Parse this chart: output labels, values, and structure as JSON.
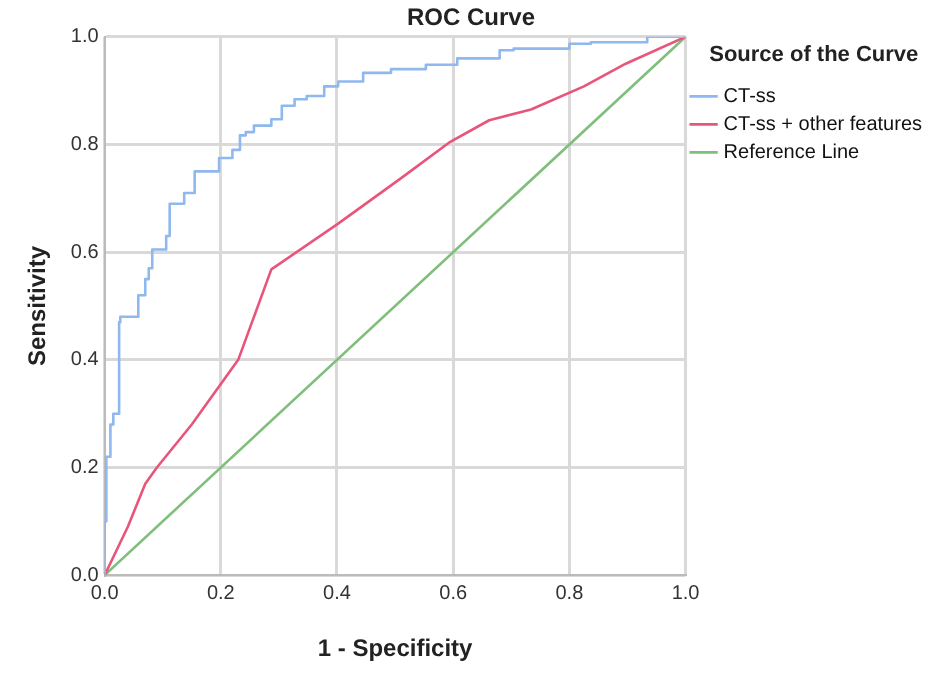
{
  "chart_data": {
    "type": "line",
    "title": "ROC Curve",
    "xlabel": "1 - Specificity",
    "ylabel": "Sensitivity",
    "legend_title": "Source of the Curve",
    "xlim": [
      0,
      1
    ],
    "ylim": [
      0,
      1
    ],
    "xticks": [
      {
        "value": 0,
        "label": "0.0"
      },
      {
        "value": 0.2,
        "label": "0.2"
      },
      {
        "value": 0.4,
        "label": "0.4"
      },
      {
        "value": 0.6,
        "label": "0.6"
      },
      {
        "value": 0.8,
        "label": "0.8"
      },
      {
        "value": 1,
        "label": "1.0"
      }
    ],
    "yticks": [
      {
        "value": 0,
        "label": "0.0"
      },
      {
        "value": 0.2,
        "label": "0.2"
      },
      {
        "value": 0.4,
        "label": "0.4"
      },
      {
        "value": 0.6,
        "label": "0.6"
      },
      {
        "value": 0.8,
        "label": "0.8"
      },
      {
        "value": 1,
        "label": "1.0"
      }
    ],
    "grid": true,
    "legend": "right",
    "marker": "none",
    "series": [
      {
        "name": "CT-ss",
        "type": "step",
        "color": "#8fb8ee",
        "x": [
          0,
          0.003,
          0.01,
          0.015,
          0.025,
          0.027,
          0.058,
          0.07,
          0.076,
          0.082,
          0.106,
          0.112,
          0.137,
          0.155,
          0.197,
          0.22,
          0.233,
          0.243,
          0.257,
          0.287,
          0.305,
          0.327,
          0.348,
          0.378,
          0.402,
          0.445,
          0.493,
          0.553,
          0.607,
          0.68,
          0.704,
          0.8,
          0.837,
          0.934,
          1
        ],
        "values": [
          0,
          0.1,
          0.22,
          0.28,
          0.3,
          0.47,
          0.48,
          0.52,
          0.55,
          0.57,
          0.605,
          0.63,
          0.69,
          0.71,
          0.75,
          0.775,
          0.79,
          0.817,
          0.823,
          0.835,
          0.847,
          0.872,
          0.884,
          0.89,
          0.908,
          0.917,
          0.933,
          0.94,
          0.948,
          0.96,
          0.975,
          0.978,
          0.987,
          0.99,
          1
        ]
      },
      {
        "name": "CT-ss + other features",
        "color": "#e8557a",
        "x": [
          0,
          0.04,
          0.07,
          0.09,
          0.15,
          0.23,
          0.287,
          0.402,
          0.511,
          0.595,
          0.662,
          0.734,
          0.825,
          0.897,
          1
        ],
        "values": [
          0,
          0.09,
          0.17,
          0.2,
          0.28,
          0.4,
          0.568,
          0.653,
          0.738,
          0.805,
          0.845,
          0.865,
          0.908,
          0.95,
          1
        ]
      },
      {
        "name": "Reference Line",
        "color": "#7fbf7b",
        "x": [
          0,
          1
        ],
        "values": [
          0,
          1
        ]
      }
    ]
  }
}
